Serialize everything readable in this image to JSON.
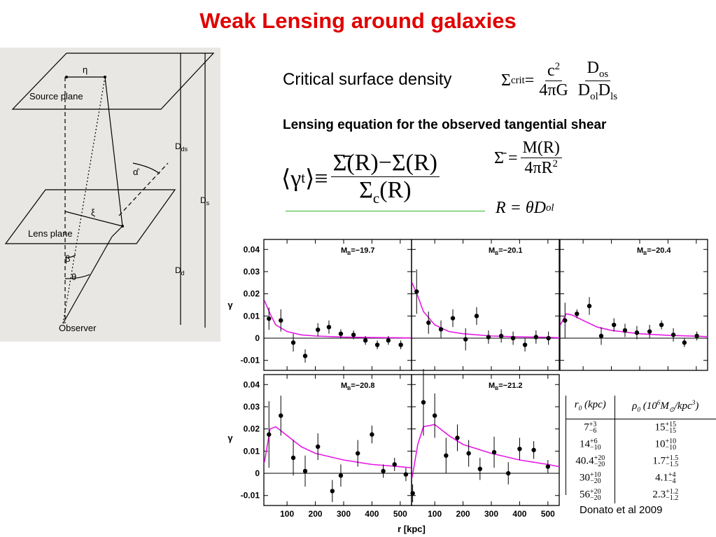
{
  "title": "Weak Lensing around galaxies",
  "diagram": {
    "eta": "η",
    "source_plane": "Source plane",
    "lens_plane": "Lens plane",
    "xi": "ξ",
    "alpha": "α̂",
    "beta": "β",
    "theta": "θ",
    "observer": "Observer",
    "d_ds": {
      "b": "D",
      "sub": "ds"
    },
    "d_s": {
      "b": "D",
      "sub": "s"
    },
    "d_d": {
      "b": "D",
      "sub": "d"
    }
  },
  "critical_label": "Critical surface density",
  "shear_heading": "Lensing equation for the observed tangential shear",
  "equations": {
    "crit": [
      {
        "b": "Σ",
        "sub": "crit"
      },
      {
        "b": " = "
      },
      {
        "num": [
          {
            "b": "c",
            "sup": "2"
          }
        ],
        "den": [
          {
            "b": "4πG"
          }
        ]
      },
      {
        "num": [
          {
            "b": "D",
            "sub": "os"
          }
        ],
        "den": [
          {
            "b": "D",
            "sub": "ol"
          },
          {
            "b": "D",
            "sub": "ls"
          }
        ]
      }
    ],
    "shear": [
      {
        "b": "⟨γ",
        "sub": "t"
      },
      {
        "b": "⟩≡"
      },
      {
        "num": [
          {
            "b": "Σ̄(R)−Σ(R)"
          }
        ],
        "den": [
          {
            "b": "Σ",
            "sub": "c"
          },
          {
            "b": "(R)"
          }
        ]
      }
    ],
    "sigma_bar": [
      {
        "b": "Σ̄ = "
      },
      {
        "num": [
          {
            "b": "M(R)"
          }
        ],
        "den": [
          {
            "b": "4πR",
            "sup": "2"
          }
        ]
      }
    ],
    "radius": [
      {
        "b": "R = θD",
        "sub": "ol"
      }
    ]
  },
  "axes": {
    "xlabel": "r [kpc]",
    "ylabel": "γ"
  },
  "chart_data": [
    {
      "type": "scatter",
      "label_main": "M",
      "label_sub": "B",
      "label_value": "=−19.7",
      "x": [
        36,
        78,
        122,
        164,
        209,
        248,
        290,
        335,
        377,
        419,
        458,
        502
      ],
      "values": [
        0.0088,
        0.008,
        -0.002,
        -0.008,
        0.0038,
        0.005,
        0.002,
        0.0015,
        -0.001,
        -0.003,
        -0.001,
        -0.003
      ],
      "errors": [
        0.005,
        0.005,
        0.004,
        0.003,
        0.003,
        0.003,
        0.002,
        0.002,
        0.002,
        0.002,
        0.002,
        0.002
      ],
      "color": "#000000",
      "fit": {
        "x": [
          20,
          40,
          60,
          100,
          150,
          200,
          300,
          400,
          500,
          540
        ],
        "values": [
          0.017,
          0.011,
          0.006,
          0.003,
          0.0015,
          0.001,
          0.0005,
          0.0003,
          0.0002,
          0.0001
        ],
        "color": "#e619e6"
      },
      "xlim": [
        18,
        540
      ],
      "ylim": [
        -0.0145,
        0.0445
      ],
      "xticks": [
        100,
        200,
        300,
        400,
        500
      ],
      "yticks": [
        -0.01,
        0,
        0.01,
        0.02,
        0.03,
        0.04
      ]
    },
    {
      "type": "scatter",
      "label_main": "M",
      "label_sub": "B",
      "label_value": "=−20.1",
      "x": [
        36,
        78,
        122,
        164,
        209,
        248,
        290,
        335,
        377,
        419,
        458,
        502
      ],
      "values": [
        0.021,
        0.007,
        0.004,
        0.009,
        -0.0005,
        0.01,
        0.0005,
        0.001,
        0,
        -0.003,
        0.0005,
        0
      ],
      "errors": [
        0.01,
        0.005,
        0.004,
        0.004,
        0.005,
        0.004,
        0.003,
        0.003,
        0.003,
        0.003,
        0.003,
        0.003
      ],
      "color": "#000000",
      "fit": {
        "x": [
          20,
          40,
          60,
          100,
          150,
          200,
          300,
          400,
          500,
          540
        ],
        "values": [
          0.025,
          0.019,
          0.012,
          0.006,
          0.003,
          0.002,
          0.001,
          0.0006,
          0.0004,
          0.0002
        ],
        "color": "#e619e6"
      },
      "xlim": [
        18,
        540
      ],
      "ylim": [
        -0.0145,
        0.0445
      ],
      "xticks": [
        100,
        200,
        300,
        400,
        500
      ],
      "yticks": [
        -0.01,
        0,
        0.01,
        0.02,
        0.03,
        0.04
      ]
    },
    {
      "type": "scatter",
      "label_main": "M",
      "label_sub": "B",
      "label_value": "=−20.4",
      "x": [
        36,
        78,
        122,
        164,
        209,
        248,
        290,
        335,
        377,
        419,
        458,
        502
      ],
      "values": [
        0.008,
        0.011,
        0.0145,
        0.001,
        0.006,
        0.0035,
        0.0025,
        0.003,
        0.006,
        0.0015,
        -0.002,
        0.001
      ],
      "errors": [
        0.008,
        0.002,
        0.004,
        0.004,
        0.003,
        0.003,
        0.003,
        0.003,
        0.002,
        0.003,
        0.002,
        0.002
      ],
      "color": "#000000",
      "fit": {
        "x": [
          20,
          40,
          60,
          100,
          150,
          200,
          300,
          400,
          500,
          540
        ],
        "values": [
          0.006,
          0.011,
          0.0105,
          0.008,
          0.005,
          0.0035,
          0.002,
          0.0013,
          0.0009,
          0.0007
        ],
        "color": "#e619e6"
      },
      "xlim": [
        18,
        540
      ],
      "ylim": [
        -0.0145,
        0.0445
      ],
      "xticks": [
        100,
        200,
        300,
        400,
        500
      ],
      "yticks": [
        -0.01,
        0,
        0.01,
        0.02,
        0.03,
        0.04
      ]
    },
    {
      "type": "scatter",
      "label_main": "M",
      "label_sub": "B",
      "label_value": "=−20.8",
      "x": [
        36,
        78,
        122,
        164,
        209,
        260,
        290,
        350,
        400,
        440,
        480,
        520
      ],
      "values": [
        0.0175,
        0.026,
        0.007,
        0.001,
        0.012,
        -0.008,
        -0.001,
        0.009,
        0.0175,
        0.001,
        0.004,
        -0.0005
      ],
      "errors": [
        0.015,
        0.009,
        0.008,
        0.007,
        0.006,
        0.005,
        0.005,
        0.006,
        0.004,
        0.003,
        0.003,
        0.003
      ],
      "color": "#000000",
      "fit": {
        "x": [
          20,
          40,
          60,
          100,
          150,
          200,
          300,
          400,
          500,
          540
        ],
        "values": [
          0.005,
          0.02,
          0.021,
          0.017,
          0.012,
          0.009,
          0.006,
          0.004,
          0.003,
          0.0025
        ],
        "color": "#e619e6"
      },
      "xlim": [
        18,
        540
      ],
      "ylim": [
        -0.0145,
        0.0445
      ],
      "xticks": [
        100,
        200,
        300,
        400,
        500
      ],
      "yticks": [
        -0.01,
        0,
        0.01,
        0.02,
        0.03,
        0.04
      ]
    },
    {
      "type": "scatter",
      "label_main": "M",
      "label_sub": "B",
      "label_value": "=−21.2",
      "x": [
        22,
        60,
        100,
        140,
        180,
        220,
        260,
        310,
        360,
        400,
        450,
        500
      ],
      "values": [
        -0.009,
        0.032,
        0.026,
        0.008,
        0.016,
        0.009,
        0.002,
        0.0095,
        0,
        0.011,
        0.0105,
        0.003
      ],
      "errors": [
        0.004,
        0.015,
        0.01,
        0.008,
        0.006,
        0.006,
        0.005,
        0.007,
        0.005,
        0.005,
        0.004,
        0.003
      ],
      "color": "#000000",
      "fit": {
        "x": [
          20,
          40,
          60,
          100,
          150,
          200,
          300,
          400,
          500,
          540
        ],
        "values": [
          -0.002,
          0.013,
          0.021,
          0.022,
          0.017,
          0.013,
          0.009,
          0.006,
          0.004,
          0.003
        ],
        "color": "#e619e6"
      },
      "xlim": [
        18,
        540
      ],
      "ylim": [
        -0.0145,
        0.0445
      ],
      "xticks": [
        100,
        200,
        300,
        400,
        500
      ],
      "yticks": [
        -0.01,
        0,
        0.01,
        0.02,
        0.03,
        0.04
      ]
    }
  ],
  "table": {
    "header": [
      [
        {
          "b": "r"
        },
        {
          "b": "0",
          "cls": "s"
        },
        {
          "b": " (kpc)"
        }
      ],
      [
        {
          "b": "ρ"
        },
        {
          "b": "0",
          "cls": "s"
        },
        {
          "b": " (10"
        },
        {
          "b": "6",
          "cls": "p"
        },
        {
          "b": "M"
        },
        {
          "b": "⊙",
          "cls": "s"
        },
        {
          "b": "/kpc"
        },
        {
          "b": "3",
          "cls": "p"
        },
        {
          "b": ")"
        }
      ]
    ],
    "rows": [
      [
        [
          "7",
          "+3",
          "−6"
        ],
        [
          "15",
          "+15",
          "−15"
        ]
      ],
      [
        [
          "14",
          "+6",
          "−10"
        ],
        [
          "10",
          "+10",
          "−10"
        ]
      ],
      [
        [
          "40.4",
          "+20",
          "−20"
        ],
        [
          "1.7",
          "+1.5",
          "−1.5"
        ]
      ],
      [
        [
          "30",
          "+10",
          "−20"
        ],
        [
          "4.1",
          "+4",
          "−4"
        ]
      ],
      [
        [
          "56",
          "+20",
          "−20"
        ],
        [
          "2.3",
          "+1.2",
          "−1.2"
        ]
      ]
    ]
  },
  "citation": "Donato et al 2009"
}
